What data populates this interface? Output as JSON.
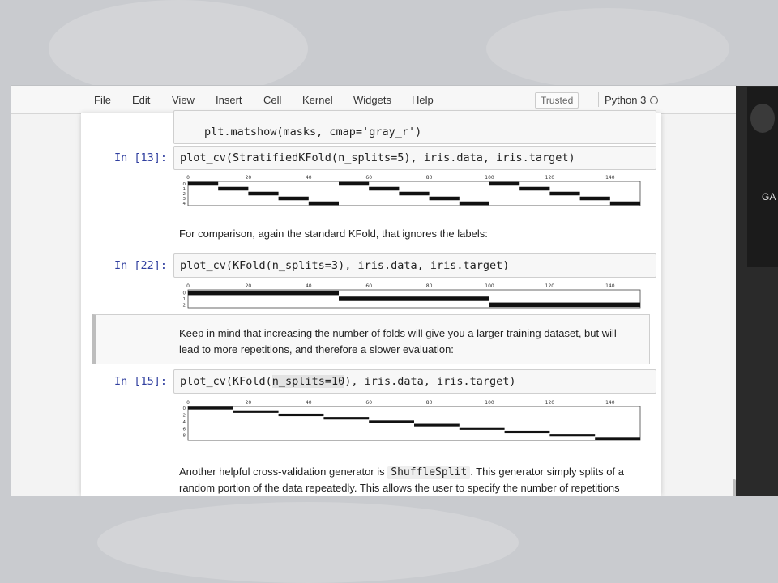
{
  "menu": [
    "File",
    "Edit",
    "View",
    "Insert",
    "Cell",
    "Kernel",
    "Widgets",
    "Help"
  ],
  "trusted_label": "Trusted",
  "kernel_name": "Python 3",
  "cells": {
    "c0_code": "plt.matshow(masks, cmap='gray_r')",
    "c13_prompt": "In [13]:",
    "c13_code": "plot_cv(StratifiedKFold(n_splits=5), iris.data, iris.target)",
    "md1": "For comparison, again the standard KFold, that ignores the labels:",
    "c22_prompt": "In [22]:",
    "c22_code": "plot_cv(KFold(n_splits=3), iris.data, iris.target)",
    "md2_line1": "Keep in mind that increasing the number of folds will give you a larger training dataset, but will",
    "md2_line2": "lead to more repetitions, and therefore a slower evaluation:",
    "c15_prompt": "In [15]:",
    "c15_code_pre": "plot_cv(KFold(",
    "c15_code_hl": "n_splits=10",
    "c15_code_post": "), iris.data, iris.target)",
    "md3_line1_pre": "Another helpful cross-validation generator is ",
    "md3_inline_code": "ShuffleSplit",
    "md3_line1_post": ". This generator simply splits of a",
    "md3_line2": "random portion of the data repeatedly. This allows the user to specify the number of repetitions"
  },
  "webcam_text": "GA",
  "chart_data": [
    {
      "type": "heatmap",
      "title": "",
      "x_ticks": [
        "0",
        "20",
        "40",
        "60",
        "80",
        "100",
        "120",
        "140"
      ],
      "y_ticks": [
        "0",
        "1",
        "2",
        "3",
        "4"
      ],
      "n_samples": 150,
      "n_folds": 5,
      "test_index_ranges": [
        [
          [
            0,
            10
          ],
          [
            50,
            60
          ],
          [
            100,
            110
          ]
        ],
        [
          [
            10,
            20
          ],
          [
            60,
            70
          ],
          [
            110,
            120
          ]
        ],
        [
          [
            20,
            30
          ],
          [
            70,
            80
          ],
          [
            120,
            130
          ]
        ],
        [
          [
            30,
            40
          ],
          [
            80,
            90
          ],
          [
            130,
            140
          ]
        ],
        [
          [
            40,
            50
          ],
          [
            90,
            100
          ],
          [
            140,
            150
          ]
        ]
      ]
    },
    {
      "type": "heatmap",
      "title": "",
      "x_ticks": [
        "0",
        "20",
        "40",
        "60",
        "80",
        "100",
        "120",
        "140"
      ],
      "y_ticks": [
        "0",
        "1",
        "2"
      ],
      "n_samples": 150,
      "n_folds": 3,
      "test_index_ranges": [
        [
          [
            0,
            50
          ]
        ],
        [
          [
            50,
            100
          ]
        ],
        [
          [
            100,
            150
          ]
        ]
      ]
    },
    {
      "type": "heatmap",
      "title": "",
      "x_ticks": [
        "0",
        "20",
        "40",
        "60",
        "80",
        "100",
        "120",
        "140"
      ],
      "y_ticks": [
        "0",
        "2",
        "4",
        "6",
        "8"
      ],
      "n_samples": 150,
      "n_folds": 10,
      "test_index_ranges": [
        [
          [
            0,
            15
          ]
        ],
        [
          [
            15,
            30
          ]
        ],
        [
          [
            30,
            45
          ]
        ],
        [
          [
            45,
            60
          ]
        ],
        [
          [
            60,
            75
          ]
        ],
        [
          [
            75,
            90
          ]
        ],
        [
          [
            90,
            105
          ]
        ],
        [
          [
            105,
            120
          ]
        ],
        [
          [
            120,
            135
          ]
        ],
        [
          [
            135,
            150
          ]
        ]
      ]
    }
  ]
}
